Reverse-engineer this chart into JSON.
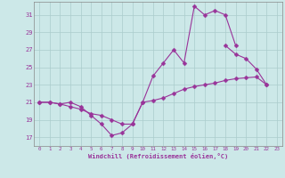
{
  "xlabel": "Windchill (Refroidissement éolien,°C)",
  "background_color": "#cce8e8",
  "grid_color": "#aacccc",
  "line_color": "#993399",
  "xlim": [
    -0.5,
    23.5
  ],
  "ylim": [
    16.0,
    32.5
  ],
  "yticks": [
    17,
    19,
    21,
    23,
    25,
    27,
    29,
    31
  ],
  "xticks": [
    0,
    1,
    2,
    3,
    4,
    5,
    6,
    7,
    8,
    9,
    10,
    11,
    12,
    13,
    14,
    15,
    16,
    17,
    18,
    19,
    20,
    21,
    22,
    23
  ],
  "y1": [
    21.0,
    21.0,
    20.8,
    21.0,
    20.5,
    19.5,
    18.5,
    17.2,
    17.5,
    18.5,
    21.0,
    24.0,
    25.5,
    27.0,
    25.5,
    32.0,
    31.0,
    31.5,
    31.0,
    27.5,
    null,
    null,
    null,
    null
  ],
  "y2": [
    21.0,
    21.0,
    20.8,
    20.5,
    20.2,
    19.7,
    19.5,
    19.0,
    18.5,
    18.5,
    21.0,
    21.2,
    21.5,
    22.0,
    22.5,
    22.8,
    23.0,
    23.2,
    23.5,
    23.7,
    23.8,
    23.9,
    23.0,
    null
  ],
  "y3": [
    null,
    null,
    null,
    null,
    null,
    null,
    null,
    null,
    null,
    null,
    null,
    null,
    null,
    null,
    null,
    null,
    null,
    null,
    27.5,
    26.5,
    26.0,
    24.8,
    23.0,
    null
  ]
}
